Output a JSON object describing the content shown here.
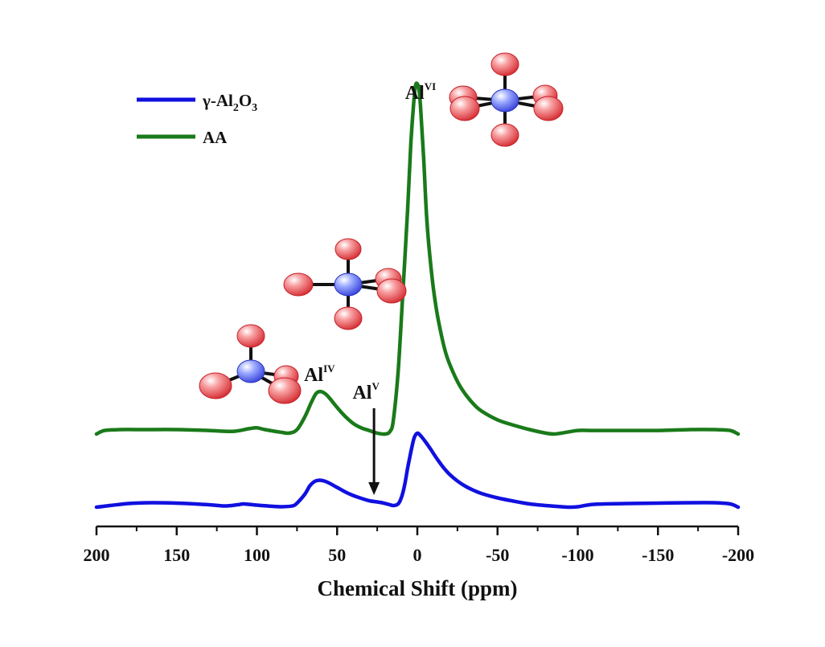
{
  "chart_data": {
    "type": "line",
    "xlabel": "Chemical Shift (ppm)",
    "xlim": [
      200,
      -200
    ],
    "x_reversed": true,
    "y_axis_visible": false,
    "grid": false,
    "legend_position": "top-left",
    "x_ticks": [
      200,
      150,
      100,
      50,
      0,
      -50,
      -100,
      -150,
      -200
    ],
    "x_tick_labels": [
      "200",
      "150",
      "100",
      "50",
      "0",
      "-50",
      "-100",
      "-150",
      "-200"
    ],
    "series": [
      {
        "name_parts": [
          "γ-Al",
          "2",
          "O",
          "3"
        ],
        "color": "#1010e0",
        "x": [
          200,
          180,
          165,
          150,
          130,
          120,
          112,
          108,
          100,
          90,
          85,
          78,
          75,
          70,
          67,
          64,
          61,
          58,
          55,
          50,
          45,
          40,
          35,
          30,
          25,
          22,
          18,
          15,
          12,
          10,
          8,
          6,
          4,
          2,
          0,
          -2,
          -5,
          -8,
          -12,
          -16,
          -20,
          -25,
          -30,
          -35,
          -40,
          -50,
          -60,
          -70,
          -80,
          -90,
          -95,
          -100,
          -110,
          -130,
          -150,
          -170,
          -185,
          -195,
          -200
        ],
        "y": [
          0.02,
          0.11,
          0.13,
          0.12,
          0.08,
          0.05,
          0.08,
          0.1,
          0.07,
          0.04,
          0.03,
          0.05,
          0.12,
          0.35,
          0.55,
          0.66,
          0.69,
          0.67,
          0.62,
          0.51,
          0.4,
          0.31,
          0.24,
          0.18,
          0.15,
          0.13,
          0.09,
          0.06,
          0.1,
          0.25,
          0.55,
          1.0,
          1.4,
          1.74,
          1.86,
          1.8,
          1.65,
          1.48,
          1.24,
          1.02,
          0.84,
          0.67,
          0.54,
          0.44,
          0.36,
          0.25,
          0.17,
          0.1,
          0.06,
          0.03,
          0.02,
          0.03,
          0.09,
          0.11,
          0.12,
          0.13,
          0.13,
          0.1,
          0.02
        ]
      },
      {
        "name": "AA",
        "color": "#1a7a1a",
        "x": [
          200,
          195,
          185,
          170,
          150,
          130,
          115,
          105,
          100,
          95,
          85,
          80,
          75,
          70,
          66,
          63,
          60,
          57,
          54,
          50,
          45,
          40,
          35,
          30,
          25,
          20,
          17,
          15,
          12,
          9,
          6,
          4,
          2,
          1,
          0,
          -1,
          -2,
          -4,
          -6,
          -9,
          -12,
          -15,
          -18,
          -22,
          -26,
          -30,
          -35,
          -40,
          -50,
          -60,
          -70,
          -80,
          -85,
          -90,
          -100,
          -110,
          -130,
          -150,
          -170,
          -185,
          -195,
          -200
        ],
        "y": [
          0.0,
          0.04,
          0.05,
          0.05,
          0.05,
          0.04,
          0.03,
          0.06,
          0.07,
          0.05,
          0.02,
          0.01,
          0.05,
          0.2,
          0.36,
          0.46,
          0.48,
          0.45,
          0.39,
          0.3,
          0.2,
          0.12,
          0.07,
          0.04,
          0.01,
          0.0,
          0.03,
          0.15,
          0.7,
          1.6,
          2.55,
          3.3,
          3.8,
          3.95,
          3.96,
          3.9,
          3.7,
          3.1,
          2.4,
          1.8,
          1.4,
          1.12,
          0.9,
          0.71,
          0.56,
          0.45,
          0.34,
          0.26,
          0.16,
          0.1,
          0.05,
          0.01,
          0.0,
          0.01,
          0.04,
          0.04,
          0.04,
          0.04,
          0.05,
          0.05,
          0.04,
          0.0
        ]
      }
    ],
    "annotations": [
      {
        "base": "Al",
        "sup": "VI",
        "x": -2,
        "series": 1
      },
      {
        "base": "Al",
        "sup": "IV",
        "x": 61,
        "series": 1
      },
      {
        "base": "Al",
        "sup": "V",
        "x": 27,
        "series": 0,
        "arrow": true
      }
    ]
  },
  "colors": {
    "axis": "#111111",
    "oxygen_atom": "#e8464a",
    "aluminum_atom": "#5566ee",
    "bond": "#111111",
    "arrow": "#111111"
  },
  "illustrations": [
    {
      "name": "octahedral-alo6-molecule-icon",
      "ligands": 6
    },
    {
      "name": "pentacoordinate-alo5-molecule-icon",
      "ligands": 5
    },
    {
      "name": "tetrahedral-alo4-molecule-icon",
      "ligands": 4
    }
  ]
}
